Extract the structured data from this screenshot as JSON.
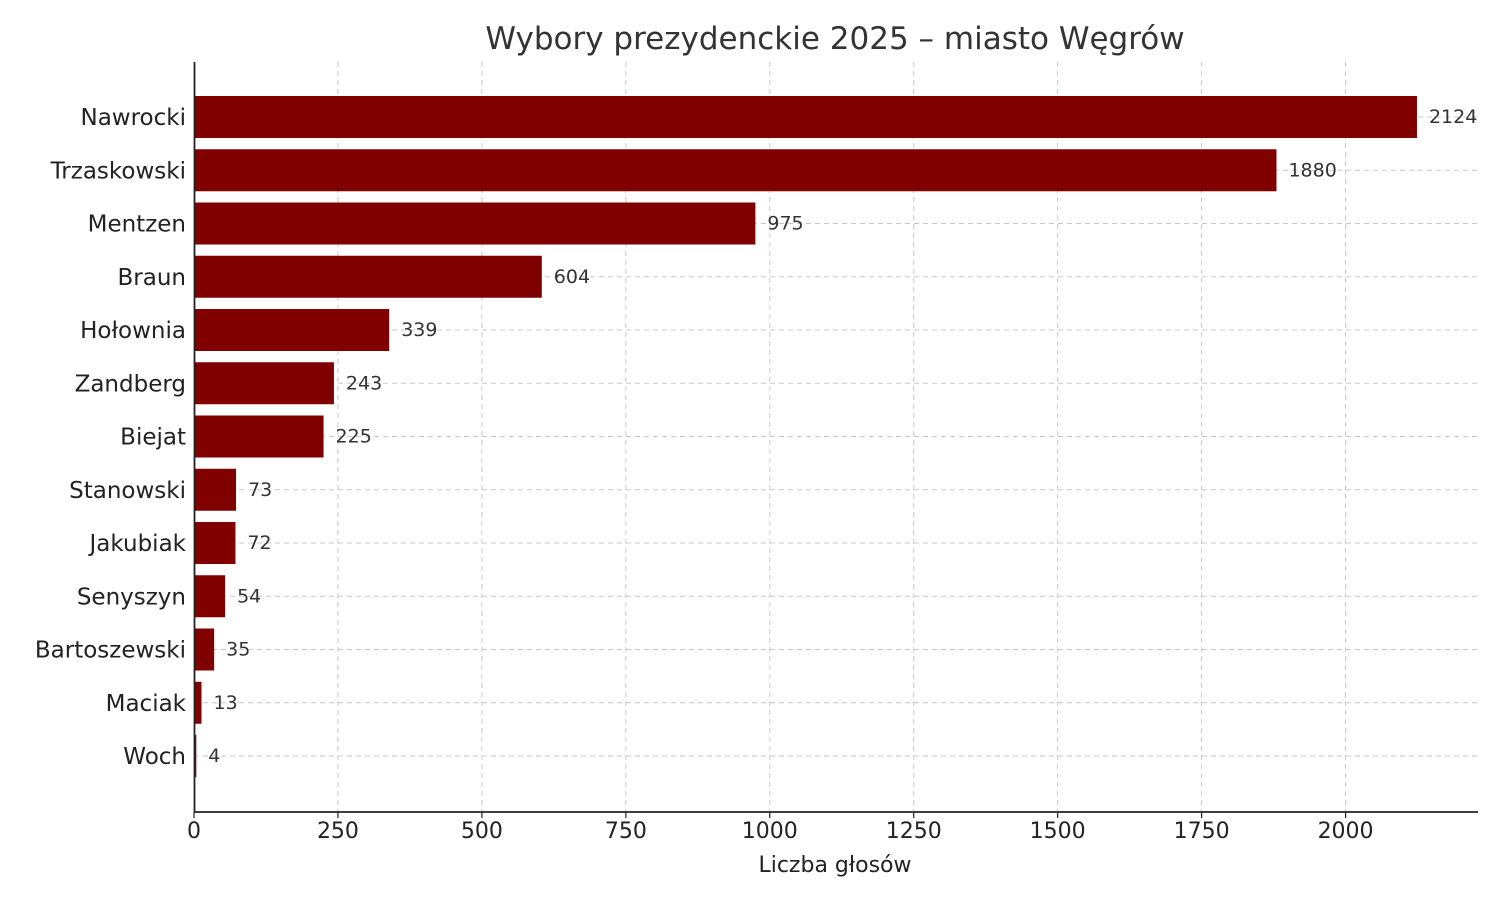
{
  "chart_data": {
    "type": "bar",
    "orientation": "horizontal",
    "title": "Wybory prezydenckie 2025 – miasto Węgrów",
    "xlabel": "Liczba głosów",
    "ylabel": "",
    "categories": [
      "Nawrocki",
      "Trzaskowski",
      "Mentzen",
      "Braun",
      "Hołownia",
      "Zandberg",
      "Biejat",
      "Stanowski",
      "Jakubiak",
      "Senyszyn",
      "Bartoszewski",
      "Maciak",
      "Woch"
    ],
    "values": [
      2124,
      1880,
      975,
      604,
      339,
      243,
      225,
      73,
      72,
      54,
      35,
      13,
      4
    ],
    "value_labels": [
      "2124",
      "1880",
      "975",
      "604",
      "339",
      "243",
      "225",
      "73",
      "72",
      "54",
      "35",
      "13",
      "4"
    ],
    "xlim": [
      0,
      2230
    ],
    "x_ticks": [
      0,
      250,
      500,
      750,
      1000,
      1250,
      1500,
      1750,
      2000
    ],
    "x_tick_labels": [
      "0",
      "250",
      "500",
      "750",
      "1000",
      "1250",
      "1500",
      "1750",
      "2000"
    ],
    "grid": true,
    "bar_color": "#800000"
  }
}
